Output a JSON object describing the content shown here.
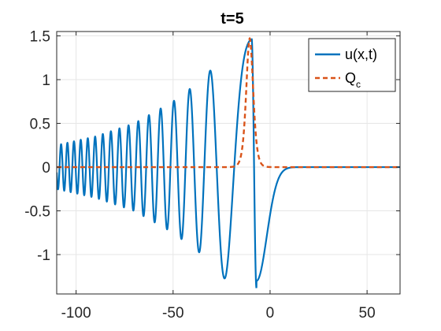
{
  "chart_data": {
    "type": "line",
    "title": "t=5",
    "xlabel": "",
    "ylabel": "",
    "xlim": [
      -110,
      67
    ],
    "ylim": [
      -1.45,
      1.55
    ],
    "xticks": [
      -100,
      -50,
      0,
      50
    ],
    "xtick_labels": [
      "-100",
      "-50",
      "0",
      "50"
    ],
    "yticks": [
      -1,
      -0.5,
      0,
      0.5,
      1,
      1.5
    ],
    "ytick_labels": [
      "-1",
      "-0.5",
      "0",
      "0.5",
      "1",
      "1.5"
    ],
    "grid": true,
    "legend_position": "top-right",
    "series": [
      {
        "name": "u(x,t)",
        "style": "solid",
        "color": "#0072BD",
        "description": "oscillating wave train with growing amplitude and shrinking frequency towards x≈-9, then smooth decay to 0",
        "envelope_points": [
          {
            "x": -110,
            "amplitude": 0.25
          },
          {
            "x": -90,
            "amplitude": 0.35
          },
          {
            "x": -70,
            "amplitude": 0.5
          },
          {
            "x": -50,
            "amplitude": 0.75
          },
          {
            "x": -35,
            "amplitude": 1.0
          },
          {
            "x": -25,
            "amplitude": 1.25
          },
          {
            "x": -15,
            "amplitude": 1.4
          },
          {
            "x": -9,
            "amplitude": 1.47
          }
        ],
        "key_points": [
          {
            "x": -9.5,
            "y": 1.47
          },
          {
            "x": -7,
            "y": -1.3
          },
          {
            "x": 0,
            "y": -0.55
          },
          {
            "x": 5,
            "y": -0.1
          },
          {
            "x": 8,
            "y": 0
          },
          {
            "x": 67,
            "y": 0
          }
        ]
      },
      {
        "name": "Q_c",
        "style": "dashed",
        "color": "#D95319",
        "description": "localized pulse peaked at x≈-10.5, zero elsewhere",
        "key_points": [
          {
            "x": -110,
            "y": 0
          },
          {
            "x": -19,
            "y": 0
          },
          {
            "x": -15,
            "y": 0.3
          },
          {
            "x": -12,
            "y": 1.1
          },
          {
            "x": -10.5,
            "y": 1.47
          },
          {
            "x": -9,
            "y": 1.1
          },
          {
            "x": -6,
            "y": 0.3
          },
          {
            "x": -2,
            "y": 0.03
          },
          {
            "x": 0,
            "y": 0
          },
          {
            "x": 67,
            "y": 0
          }
        ]
      }
    ],
    "legend": [
      {
        "label": "u(x,t)",
        "base": "u(x,t)",
        "sub": ""
      },
      {
        "label": "Q_c",
        "base": "Q",
        "sub": "c"
      }
    ]
  }
}
